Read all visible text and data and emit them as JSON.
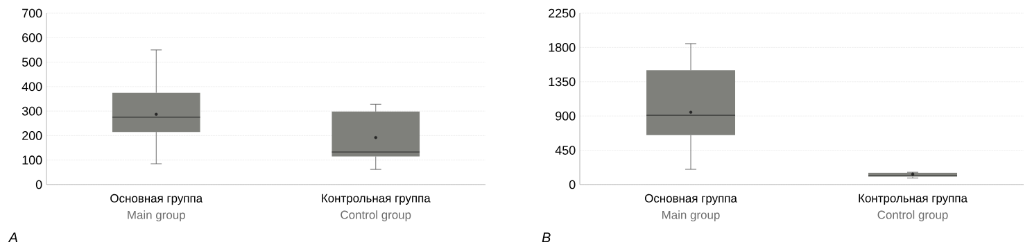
{
  "chart_data": [
    {
      "type": "box",
      "categories": [
        "Основная группа",
        "Контрольная группа"
      ],
      "color": "#7f807b",
      "boxes": [
        {
          "low": 85,
          "q1": 215,
          "median": 275,
          "q3": 375,
          "high": 550,
          "mean": 287
        },
        {
          "low": 62,
          "q1": 115,
          "median": 133,
          "q3": 298,
          "high": 328,
          "mean": 192
        }
      ],
      "ylim": [
        0,
        700
      ],
      "yticks": [
        0,
        100,
        200,
        300,
        400,
        500,
        600,
        700
      ],
      "grid": "y",
      "annotations": [
        "Main group",
        "Control group",
        "A"
      ]
    },
    {
      "type": "box",
      "categories": [
        "Основная группа",
        "Контрольная группа"
      ],
      "color": "#7f807b",
      "boxes": [
        {
          "low": 200,
          "q1": 650,
          "median": 910,
          "q3": 1500,
          "high": 1850,
          "mean": 950
        },
        {
          "low": 85,
          "q1": 105,
          "median": 115,
          "q3": 155,
          "high": 162,
          "mean": 137
        }
      ],
      "ylim": [
        0,
        2250
      ],
      "yticks": [
        0,
        450,
        900,
        1350,
        1800,
        2250
      ],
      "grid": "y",
      "annotations": [
        "Main group",
        "Control group",
        "B"
      ]
    }
  ]
}
